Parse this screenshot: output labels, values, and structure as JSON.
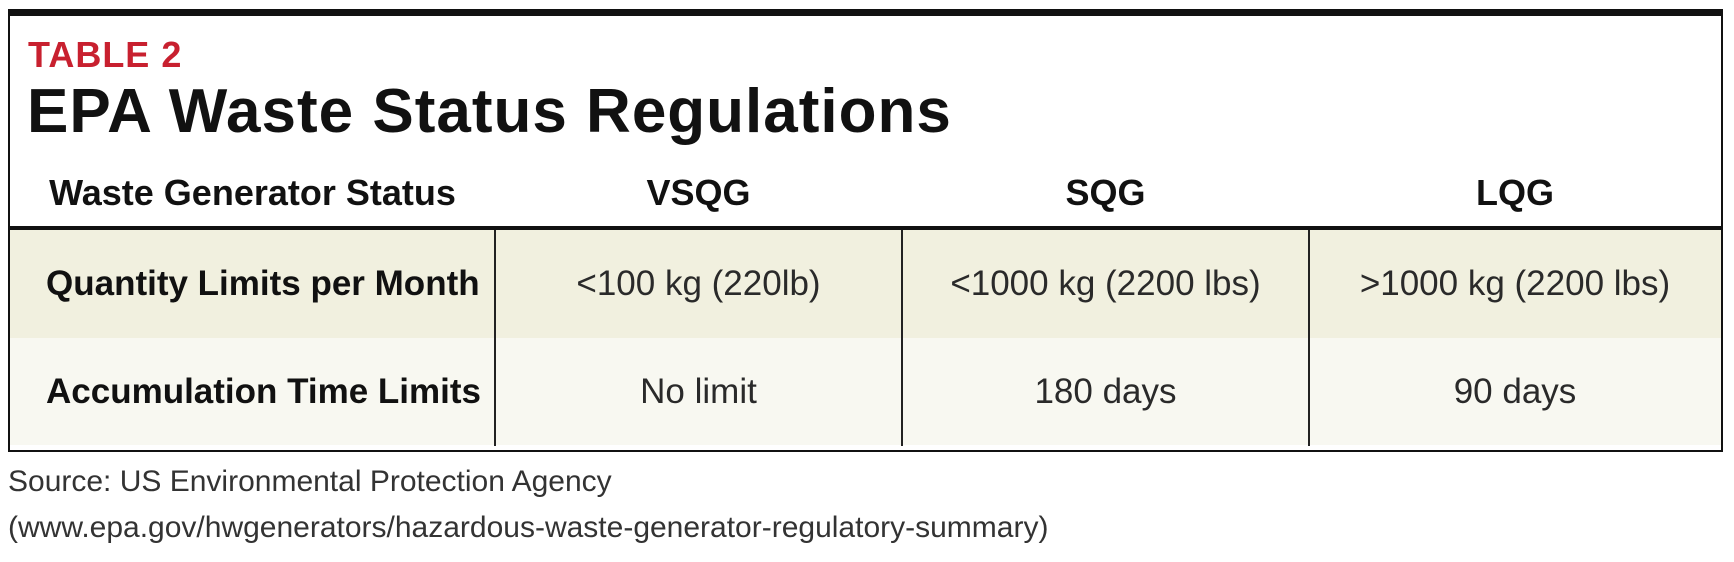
{
  "header": {
    "label": "TABLE 2",
    "title": "EPA Waste Status Regulations"
  },
  "table": {
    "columns": [
      "Waste Generator Status",
      "VSQG",
      "SQG",
      "LQG"
    ],
    "rows": [
      [
        "Quantity Limits per Month",
        "<100 kg (220lb)",
        "<1000 kg (2200 lbs)",
        ">1000 kg (2200 lbs)"
      ],
      [
        "Accumulation Time Limits",
        "No limit",
        "180 days",
        "90 days"
      ]
    ]
  },
  "source": [
    "Source: US Environmental Protection Agency",
    "(www.epa.gov/hwgenerators/hazardous-waste-generator-regulatory-summary)"
  ]
}
